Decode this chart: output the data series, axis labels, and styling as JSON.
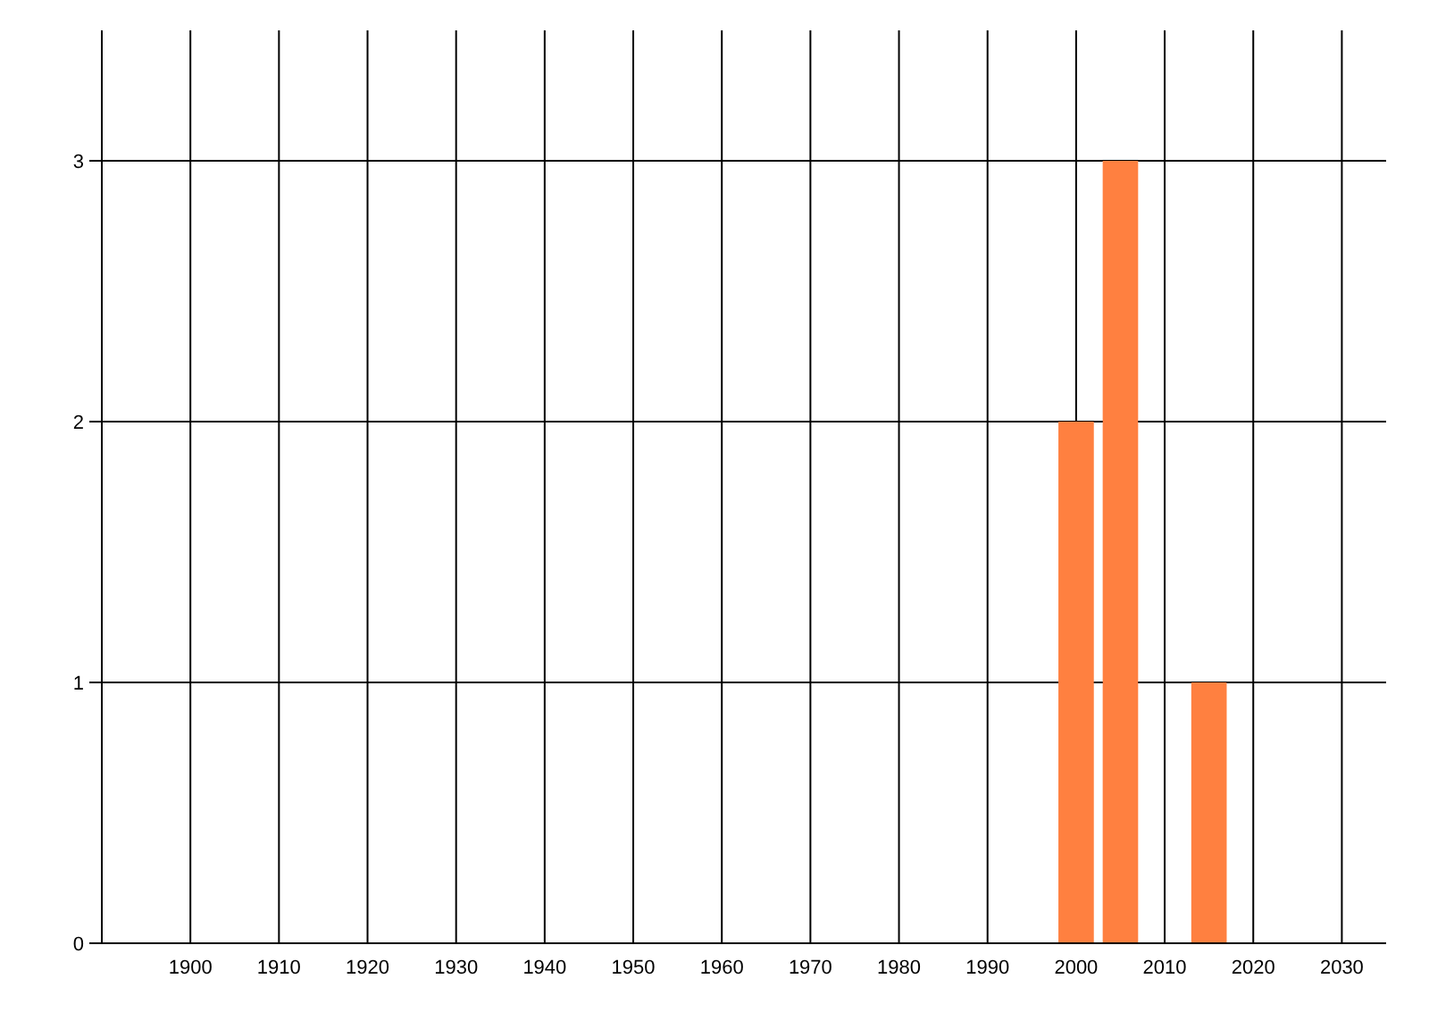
{
  "chart_data": {
    "type": "bar",
    "x": [
      2000,
      2005,
      2015
    ],
    "values": [
      2,
      3,
      1
    ],
    "color": "#ff8040",
    "xlim": [
      1890,
      2035
    ],
    "xticks": [
      1900,
      1910,
      1920,
      1930,
      1940,
      1950,
      1960,
      1970,
      1980,
      1990,
      2000,
      2010,
      2020,
      2030
    ],
    "ylim": [
      0,
      3.5
    ],
    "yticks": [
      0,
      1,
      2,
      3
    ],
    "grid": true
  }
}
